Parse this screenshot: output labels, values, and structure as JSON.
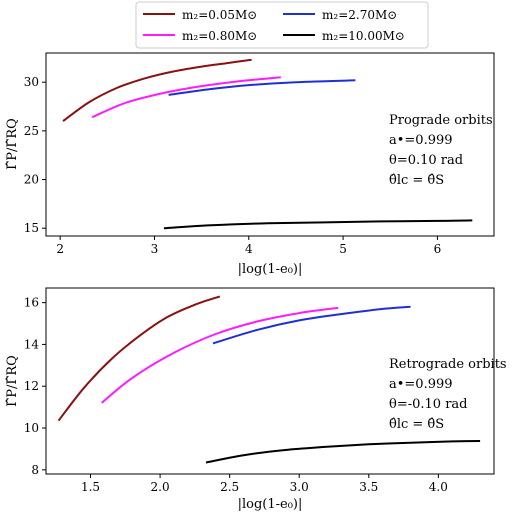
{
  "legend": {
    "entries": [
      {
        "label": "m₂=0.05M⊙",
        "color": "#8b1010"
      },
      {
        "label": "m₂=2.70M⊙",
        "color": "#1f2fd6"
      },
      {
        "label": "m₂=0.80M⊙",
        "color": "#ff1aff"
      },
      {
        "label": "m₂=10.00M⊙",
        "color": "#000000"
      }
    ],
    "placement": "top-center, above both panels"
  },
  "chart_data": [
    {
      "type": "line",
      "xlabel": "|log(1-e₀)|",
      "ylabel": "Γ̂P/Γ̂RQ",
      "xlim": [
        1.85,
        6.6
      ],
      "ylim": [
        14.2,
        33.0
      ],
      "xticks": [
        2,
        3,
        4,
        5,
        6
      ],
      "yticks": [
        15,
        20,
        25,
        30
      ],
      "grid": false,
      "annotation": [
        "Prograde orbits",
        "a•=0.999",
        "θ=0.10 rad",
        "θ̂lc = θ̂S"
      ],
      "series": [
        {
          "name": "m₂=0.05M⊙",
          "color": "#8b1010",
          "x": [
            2.03,
            2.3,
            2.6,
            2.9,
            3.2,
            3.5,
            3.8,
            4.03
          ],
          "y": [
            26.0,
            27.9,
            29.4,
            30.4,
            31.1,
            31.6,
            32.0,
            32.3
          ]
        },
        {
          "name": "m₂=0.80M⊙",
          "color": "#ff1aff",
          "x": [
            2.34,
            2.7,
            3.1,
            3.5,
            3.9,
            4.34
          ],
          "y": [
            26.4,
            27.9,
            28.9,
            29.6,
            30.1,
            30.5
          ]
        },
        {
          "name": "m₂=2.70M⊙",
          "color": "#1f2fd6",
          "x": [
            3.15,
            3.6,
            4.0,
            4.5,
            5.13
          ],
          "y": [
            28.7,
            29.3,
            29.7,
            30.0,
            30.2
          ]
        },
        {
          "name": "m₂=10.00M⊙",
          "color": "#000000",
          "x": [
            3.1,
            3.6,
            4.2,
            4.8,
            5.4,
            6.0,
            6.37
          ],
          "y": [
            15.0,
            15.3,
            15.5,
            15.6,
            15.7,
            15.75,
            15.8
          ]
        }
      ]
    },
    {
      "type": "line",
      "xlabel": "|log(1-e₀)|",
      "ylabel": "Γ̂P/Γ̂RQ",
      "xlim": [
        1.18,
        4.4
      ],
      "ylim": [
        7.8,
        16.7
      ],
      "xticks": [
        1.5,
        2.0,
        2.5,
        3.0,
        3.5,
        4.0
      ],
      "yticks": [
        8,
        10,
        12,
        14,
        16
      ],
      "grid": false,
      "annotation": [
        "Retrograde orbits",
        "a•=0.999",
        "θ=-0.10 rad",
        "θ̂lc = θ̂S"
      ],
      "series": [
        {
          "name": "m₂=0.05M⊙",
          "color": "#8b1010",
          "x": [
            1.27,
            1.45,
            1.65,
            1.85,
            2.05,
            2.25,
            2.43
          ],
          "y": [
            10.35,
            11.9,
            13.3,
            14.4,
            15.3,
            15.9,
            16.3
          ]
        },
        {
          "name": "m₂=0.80M⊙",
          "color": "#ff1aff",
          "x": [
            1.58,
            1.8,
            2.1,
            2.4,
            2.7,
            3.0,
            3.28
          ],
          "y": [
            11.2,
            12.4,
            13.6,
            14.5,
            15.1,
            15.5,
            15.75
          ]
        },
        {
          "name": "m₂=2.70M⊙",
          "color": "#1f2fd6",
          "x": [
            2.38,
            2.7,
            3.0,
            3.3,
            3.6,
            3.8
          ],
          "y": [
            14.05,
            14.7,
            15.15,
            15.45,
            15.7,
            15.8
          ]
        },
        {
          "name": "m₂=10.00M⊙",
          "color": "#000000",
          "x": [
            2.33,
            2.6,
            2.9,
            3.2,
            3.5,
            3.8,
            4.1,
            4.3
          ],
          "y": [
            8.35,
            8.7,
            8.95,
            9.1,
            9.22,
            9.3,
            9.36,
            9.38
          ]
        }
      ]
    }
  ]
}
